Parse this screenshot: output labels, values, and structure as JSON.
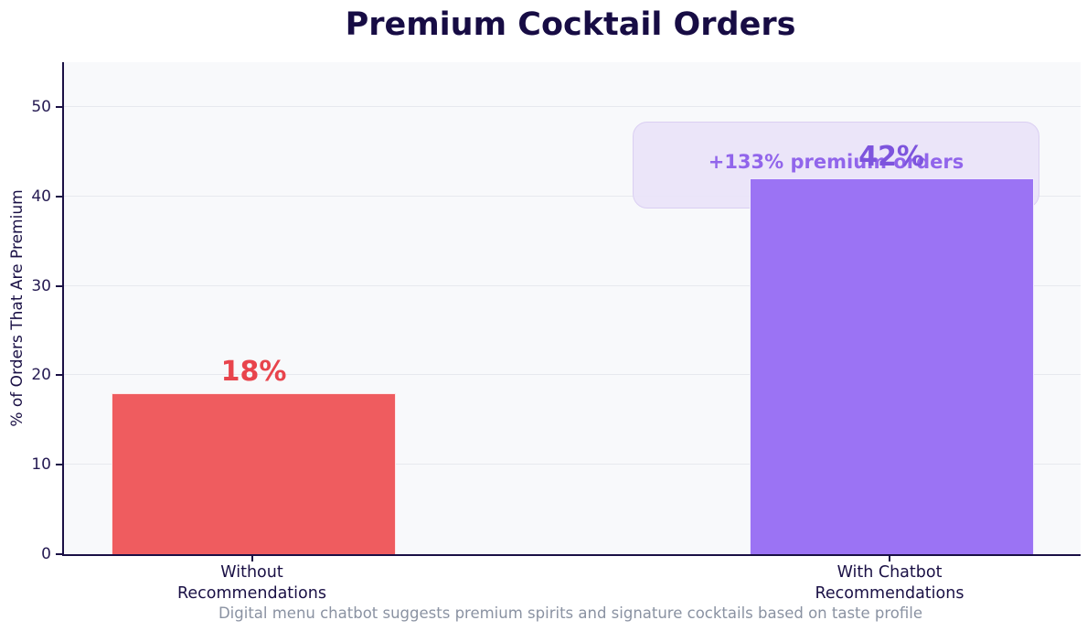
{
  "chart_data": {
    "type": "bar",
    "title": "Premium Cocktail Orders",
    "ylabel": "% of Orders That Are Premium",
    "xlabel": "",
    "caption": "Digital menu chatbot suggests premium spirits and signature cocktails based on taste profile",
    "categories": [
      "Without\nRecommendations",
      "With Chatbot\nRecommendations"
    ],
    "values": [
      18,
      42
    ],
    "bar_labels": [
      "18%",
      "42%"
    ],
    "bar_colors": [
      "#EF5C5F",
      "#9B73F4"
    ],
    "bar_label_colors": [
      "#E8444C",
      "#7D54DD"
    ],
    "yticks": [
      0,
      10,
      20,
      30,
      40,
      50
    ],
    "ylim": [
      0,
      55
    ],
    "grid": "horizontal",
    "legend": "none",
    "annotation": {
      "text": "+133% premium orders",
      "text_color": "#9165EB",
      "fill_color": "rgba(233,227,249,0.92)",
      "border_color": "#DACFF2"
    },
    "colors": {
      "title": "#170C44",
      "axis": "#1A1045",
      "tick_labels": "#251A52",
      "plot_bg": "#F8F9FB",
      "grid": "#E7E9EE",
      "caption": "#8A92A2"
    }
  }
}
